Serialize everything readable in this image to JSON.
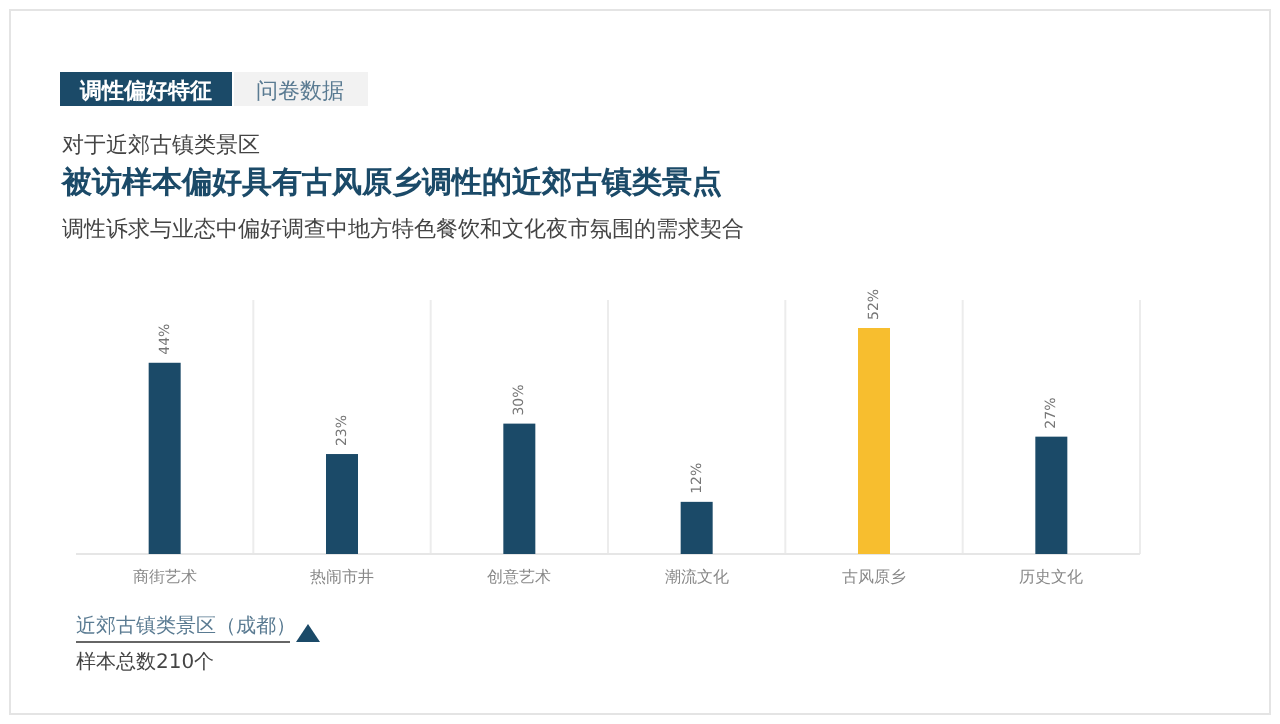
{
  "chart_data": {
    "type": "bar",
    "title": "被访样本偏好具有古风原乡调性的近郊古镇类景点",
    "subtitle": "调性诉求与业态中偏好调查中地方特色餐饮和文化夜市氛围的需求契合",
    "annotations": [
      "调性偏好特征",
      "问卷数据",
      "对于近郊古镇类景区",
      "近郊古镇类景区（成都）",
      "样本总数210个"
    ],
    "categories": [
      "商街艺术",
      "热闹市井",
      "创意艺术",
      "潮流文化",
      "古风原乡",
      "历史文化"
    ],
    "values": [
      44,
      23,
      30,
      12,
      52,
      27
    ],
    "colors": [
      "#1b4a68",
      "#1b4a68",
      "#1b4a68",
      "#1b4a68",
      "#f7be2f",
      "#1b4a68"
    ],
    "value_labels": [
      "44%",
      "23%",
      "30%",
      "12%",
      "52%",
      "27%"
    ]
  }
}
